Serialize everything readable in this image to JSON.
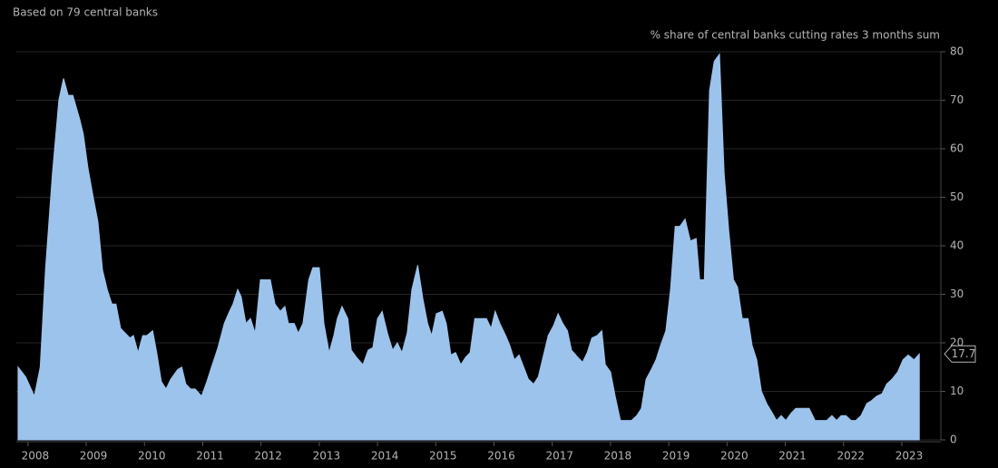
{
  "chart_data": {
    "type": "area",
    "subtitle": "Based on 79 central banks",
    "y_label": "% share of central banks cutting rates 3 months sum",
    "color": "#9cc3ec",
    "grid": true,
    "xlim": [
      2007.8,
      2023.67
    ],
    "xticks": [
      2008,
      2009,
      2010,
      2011,
      2012,
      2013,
      2014,
      2015,
      2016,
      2017,
      2018,
      2019,
      2020,
      2021,
      2022,
      2023
    ],
    "ylim": [
      0,
      80
    ],
    "yticks": [
      0,
      10,
      20,
      30,
      40,
      50,
      60,
      70,
      80
    ],
    "x": [
      2007.83,
      2007.96,
      2008.11,
      2008.21,
      2008.3,
      2008.42,
      2008.53,
      2008.61,
      2008.69,
      2008.77,
      2008.89,
      2008.95,
      2009.03,
      2009.12,
      2009.2,
      2009.28,
      2009.36,
      2009.44,
      2009.51,
      2009.59,
      2009.67,
      2009.75,
      2009.81,
      2009.89,
      2009.97,
      2010.04,
      2010.14,
      2010.21,
      2010.29,
      2010.37,
      2010.45,
      2010.57,
      2010.64,
      2010.71,
      2010.79,
      2010.87,
      2010.98,
      2011.07,
      2011.15,
      2011.26,
      2011.37,
      2011.46,
      2011.52,
      2011.6,
      2011.66,
      2011.74,
      2011.82,
      2011.9,
      2011.99,
      2012.08,
      2012.16,
      2012.24,
      2012.33,
      2012.41,
      2012.47,
      2012.57,
      2012.64,
      2012.72,
      2012.82,
      2012.89,
      2013.0,
      2013.08,
      2013.17,
      2013.25,
      2013.31,
      2013.39,
      2013.49,
      2013.55,
      2013.64,
      2013.75,
      2013.84,
      2013.92,
      2014.0,
      2014.08,
      2014.17,
      2014.26,
      2014.34,
      2014.42,
      2014.51,
      2014.59,
      2014.69,
      2014.78,
      2014.86,
      2014.93,
      2015.01,
      2015.11,
      2015.18,
      2015.26,
      2015.34,
      2015.43,
      2015.51,
      2015.59,
      2015.67,
      2015.78,
      2015.87,
      2015.95,
      2016.02,
      2016.1,
      2016.2,
      2016.27,
      2016.35,
      2016.43,
      2016.51,
      2016.59,
      2016.68,
      2016.76,
      2016.83,
      2016.93,
      2017.02,
      2017.1,
      2017.18,
      2017.26,
      2017.33,
      2017.44,
      2017.52,
      2017.6,
      2017.68,
      2017.77,
      2017.85,
      2017.91,
      2018.0,
      2018.08,
      2018.17,
      2018.27,
      2018.36,
      2018.45,
      2018.53,
      2018.61,
      2018.7,
      2018.78,
      2018.86,
      2018.95,
      2019.03,
      2019.11,
      2019.19,
      2019.28,
      2019.37,
      2019.47,
      2019.53,
      2019.61,
      2019.7,
      2019.78,
      2019.87,
      2019.95,
      2020.03,
      2020.11,
      2020.18,
      2020.26,
      2020.36,
      2020.43,
      2020.51,
      2020.59,
      2020.68,
      2020.78,
      2020.85,
      2020.93,
      2021.01,
      2021.1,
      2021.18,
      2021.27,
      2021.41,
      2021.51,
      2021.62,
      2021.71,
      2021.8,
      2021.88,
      2021.96,
      2022.04,
      2022.13,
      2022.21,
      2022.3,
      2022.4,
      2022.47,
      2022.57,
      2022.66,
      2022.74,
      2022.83,
      2022.93,
      2023.02,
      2023.11,
      2023.21,
      2023.3
    ],
    "values": [
      15,
      13,
      9,
      15,
      35,
      55,
      70,
      74.5,
      71,
      71,
      66,
      63,
      56,
      50,
      45,
      35,
      31,
      28,
      28,
      23,
      22,
      21,
      21.5,
      18,
      21.5,
      21.5,
      22.5,
      18,
      12,
      10.5,
      12.5,
      14.5,
      15,
      11.5,
      10.5,
      10.5,
      9,
      12,
      15,
      19,
      24,
      26.5,
      28,
      31,
      29.5,
      24,
      25,
      22,
      33,
      33,
      33,
      28,
      26.5,
      27.5,
      24,
      24,
      22,
      24,
      33,
      35.5,
      35.5,
      24,
      18,
      21.5,
      25,
      27.5,
      25,
      18.5,
      17,
      15.5,
      18.5,
      19,
      25,
      26.5,
      22,
      18.5,
      20,
      18,
      22,
      31,
      36,
      29,
      24,
      21.5,
      26,
      26.5,
      24,
      17.5,
      18,
      15.5,
      17,
      18,
      25,
      25,
      25,
      23,
      26.5,
      24,
      21.5,
      19.5,
      16.5,
      17.5,
      15,
      12.5,
      11.5,
      13,
      16.5,
      21.5,
      23.5,
      26,
      24,
      22.5,
      18.5,
      17,
      16,
      18,
      21,
      21.5,
      22.5,
      15.5,
      14,
      9,
      4,
      4,
      4,
      5,
      6.5,
      12.5,
      14.5,
      16.5,
      19.5,
      22.5,
      31,
      44,
      44,
      45.5,
      41,
      41.5,
      33,
      33,
      72,
      78,
      79.5,
      55,
      43,
      33,
      31.5,
      25,
      25,
      19.5,
      16.5,
      10,
      7.5,
      5.5,
      4,
      5,
      4,
      5.5,
      6.5,
      6.5,
      6.5,
      4,
      4,
      4,
      5,
      4,
      5,
      5,
      4,
      4,
      5,
      7.5,
      8,
      9,
      9.5,
      11.5,
      12.5,
      14,
      16.5,
      17.5,
      16.5,
      17.7
    ]
  }
}
